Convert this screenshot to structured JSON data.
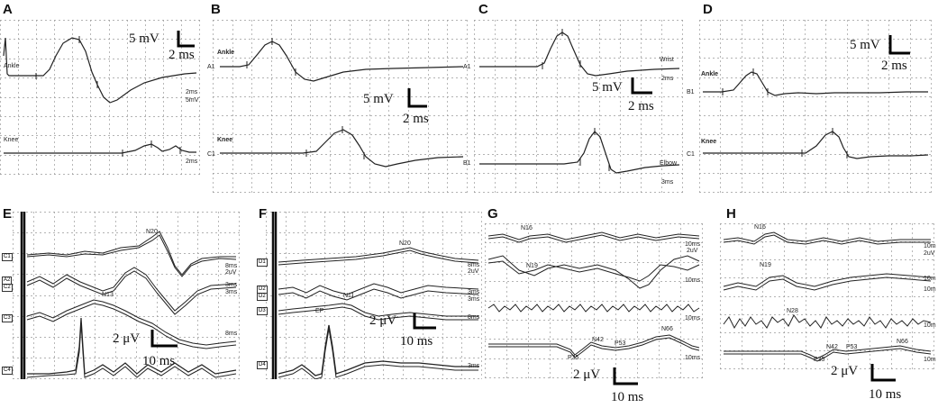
{
  "panels": {
    "A": {
      "letter": "A",
      "trace1": "Ankle",
      "trace2": "Knee",
      "r1a": "2ms",
      "r1b": "5mV",
      "r2": "2ms",
      "sv": "5 mV",
      "sh": "2 ms"
    },
    "B": {
      "letter": "B",
      "trace1": "Ankle",
      "ch1": "A1",
      "trace2": "Knee",
      "ch2": "C1",
      "sv": "5 mV",
      "sh": "2 ms"
    },
    "C": {
      "letter": "C",
      "ch1": "A1",
      "ch2": "B1",
      "r1": "Wrist",
      "r1b": "2ms",
      "r2": "Elbow",
      "r2b": "3ms",
      "sv": "5 mV",
      "sh": "2 ms"
    },
    "D": {
      "letter": "D",
      "trace1": "Ankle",
      "ch1": "B1",
      "trace2": "Knee",
      "ch2": "C1",
      "sv": "5 mV",
      "sh": "2 ms"
    },
    "E": {
      "letter": "E",
      "c1": "C1",
      "c2": "A2",
      "c2b": "C2",
      "c3": "C3",
      "c4": "C4",
      "p1": "N20",
      "p2": "N13",
      "r1a": "8ms",
      "r1b": "2uV",
      "r2a": "3ms",
      "r2b": "3ms",
      "r3": "8ms",
      "sv": "2 μV",
      "sh": "10 ms"
    },
    "F": {
      "letter": "F",
      "c1": "D1",
      "c2": "D2",
      "c2b": "D2",
      "c3": "D3",
      "c4": "D4",
      "p1": "N20",
      "p2": "N11",
      "p3": "EP",
      "r1a": "8ms",
      "r1b": "2uV",
      "r2a": "3ms",
      "r2b": "3ms",
      "r3": "8ms",
      "r4": "3ms",
      "sv": "2 μV",
      "sh": "10 ms"
    },
    "G": {
      "letter": "G",
      "p1": "N16",
      "p2": "N19",
      "p3": "N42",
      "p4": "P53",
      "p5": "N66",
      "p6": "P35",
      "r1a": "10ms",
      "r1b": "2uV",
      "r2": "10ms",
      "r3": "10ms",
      "r4": "10ms",
      "sv": "2 μV",
      "sh": "10 ms"
    },
    "H": {
      "letter": "H",
      "p1": "N16",
      "p2": "N19",
      "p3": "N28",
      "p4": "N42",
      "p5": "P53",
      "p6": "N66",
      "p7": "P35",
      "r1a": "10m",
      "r1b": "2uV",
      "r2a": "10m",
      "r2b": "10m",
      "r3": "10m",
      "r4": "10m",
      "sv": "2 μV",
      "sh": "10 ms"
    }
  },
  "colors": {
    "grid": "#9a9a9a",
    "trace": "#222222",
    "scalebar": "#000000"
  }
}
